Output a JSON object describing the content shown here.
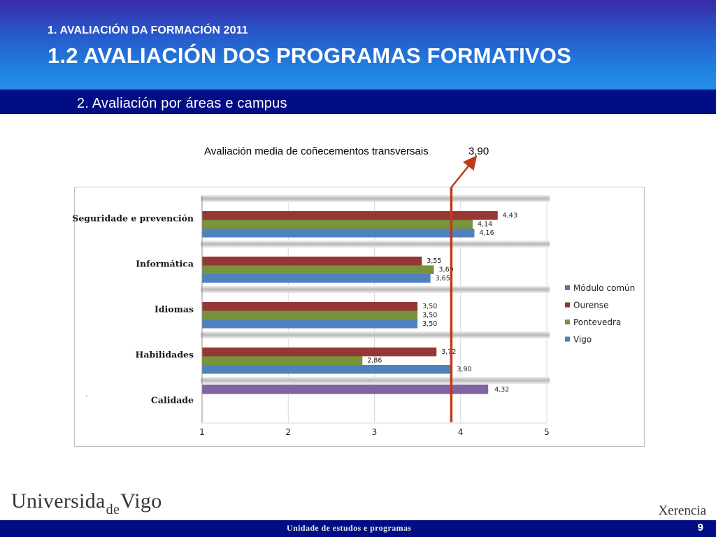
{
  "header": {
    "kicker": "1. AVALIACIÓN DA FORMACIÓN 2011",
    "title": "1.2 AVALIACIÓN DOS PROGRAMAS FORMATIVOS",
    "subtitle": "2. Avaliación por áreas e campus"
  },
  "annotation": {
    "label": "Avaliación media de coñecementos transversais",
    "value": "3,90"
  },
  "chart_data": {
    "type": "bar",
    "orientation": "horizontal",
    "categories": [
      "Seguridade e prevención",
      "Informática",
      "Idiomas",
      "Habilidades",
      "Calidade"
    ],
    "series": [
      {
        "name": "Módulo común",
        "color": "#8064a2",
        "values": [
          null,
          null,
          null,
          null,
          4.32
        ],
        "labels": [
          "",
          "",
          "",
          "",
          "4,32"
        ]
      },
      {
        "name": "Ourense",
        "color": "#953735",
        "values": [
          4.43,
          3.55,
          3.5,
          3.72,
          null
        ],
        "labels": [
          "4,43",
          "3,55",
          "3,50",
          "3,72",
          ""
        ]
      },
      {
        "name": "Pontevedra",
        "color": "#77933c",
        "values": [
          4.14,
          3.69,
          3.5,
          2.86,
          null
        ],
        "labels": [
          "4,14",
          "3,69",
          "3,50",
          "2,86",
          ""
        ]
      },
      {
        "name": "Vigo",
        "color": "#4f81bd",
        "values": [
          4.16,
          3.65,
          3.5,
          3.9,
          null
        ],
        "labels": [
          "4,16",
          "3,65",
          "3,50",
          "3,90",
          ""
        ]
      }
    ],
    "xticks": [
      "1",
      "2",
      "3",
      "4",
      "5"
    ],
    "xlim": [
      1,
      5
    ],
    "reference_line": 3.9,
    "reference_color": "#c0391b",
    "grid": true,
    "legend_position": "right"
  },
  "branding": {
    "logo_text_1": "Universida",
    "logo_text_de": "de",
    "logo_text_2": "Vigo",
    "department": "Xerencia",
    "footer_text": "Unidade de estudos e programas",
    "page_number": "9"
  },
  "misc": {
    "dot": "."
  }
}
